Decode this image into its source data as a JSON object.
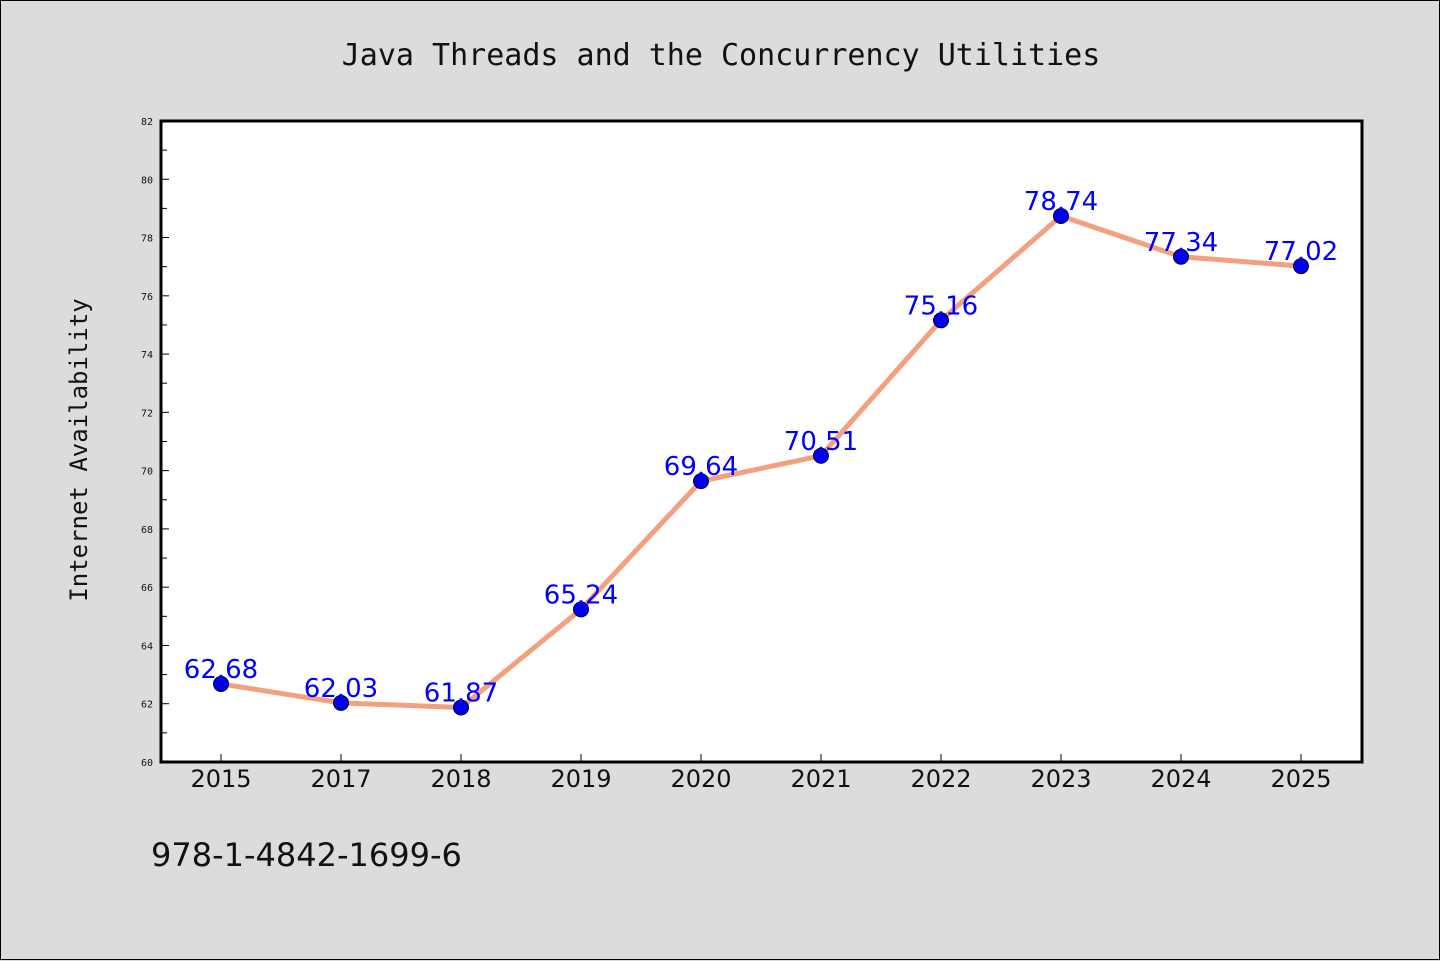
{
  "chart_data": {
    "type": "line",
    "title": "Java Threads and the Concurrency Utilities",
    "xlabel": "",
    "ylabel": "Internet Availability",
    "categories": [
      "2015",
      "2017",
      "2018",
      "2019",
      "2020",
      "2021",
      "2022",
      "2023",
      "2024",
      "2025"
    ],
    "series": [
      {
        "values": [
          62.68,
          62.03,
          61.87,
          65.24,
          69.64,
          70.51,
          75.16,
          78.74,
          77.34,
          77.02
        ]
      }
    ],
    "data_labels": [
      "62.68",
      "62.03",
      "61.87",
      "65.24",
      "69.64",
      "70.51",
      "75.16",
      "78.74",
      "77.34",
      "77.02"
    ],
    "ylim": [
      60,
      82
    ],
    "yticks": [
      "60",
      "62",
      "64",
      "66",
      "68",
      "70",
      "72",
      "74",
      "76",
      "78",
      "80",
      "82"
    ],
    "grid": false,
    "legend": "none",
    "colors": {
      "line": "#f4a07f",
      "marker": "#0000ee",
      "label": "#0000ff",
      "background": "#dcdcdc",
      "plot": "#ffffff"
    }
  },
  "footer": {
    "isbn": "978-1-4842-1699-6"
  }
}
